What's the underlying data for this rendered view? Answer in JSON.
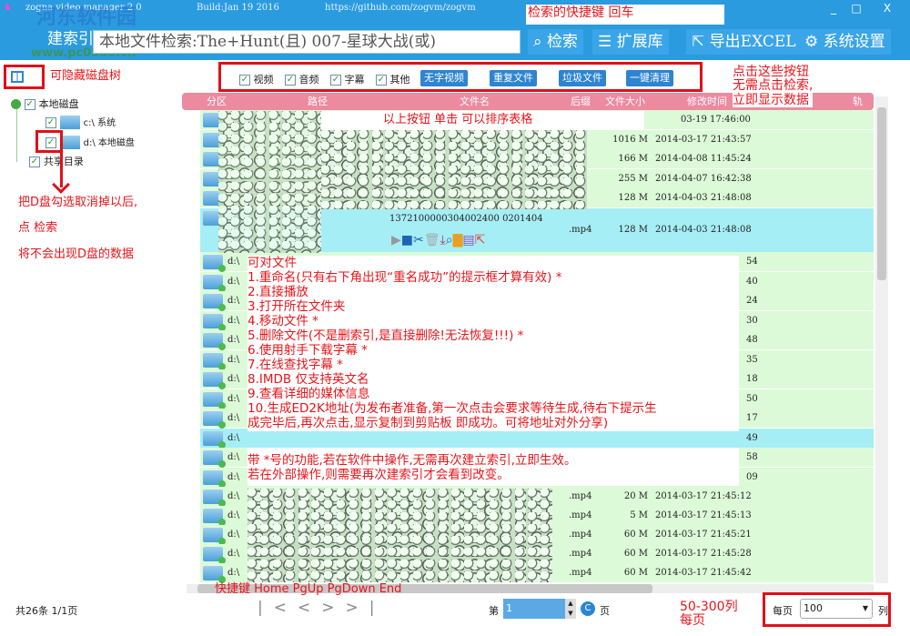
{
  "window": {
    "title": "zogna video manager 2.0",
    "build": "Build:Jan 19 2016",
    "url": "https://github.com/zogvm/zogvm",
    "minimize": "_",
    "maximize": "□",
    "close": "X"
  },
  "watermark": {
    "name": "河东软件园",
    "site": "www.pc0359.cn"
  },
  "toolbar": {
    "index_label": "建索引",
    "search_value": "本地文件检索:The+Hunt(且) 007-星球大战(或)",
    "search": "检索",
    "extend": "扩展库",
    "export": "导出EXCEL",
    "settings": "系统设置"
  },
  "filters": {
    "video": "视频",
    "audio": "音频",
    "subtitle": "字幕",
    "other": "其他",
    "btn_nosub": "无字视频",
    "btn_dup": "重复文件",
    "btn_junk": "垃圾文件",
    "btn_clean": "一键清理"
  },
  "tree": {
    "root": "本地磁盘",
    "c": "c:\\ 系统",
    "d": "d:\\ 本地磁盘",
    "shared": "共享目录"
  },
  "columns": [
    "分区",
    "路径",
    "文件名",
    "后缀",
    "文件大小",
    "修改时间",
    "轨"
  ],
  "rows_top": [
    {
      "size": "",
      "modified": "03-19 17:46:00"
    },
    {
      "size": "1016 M",
      "modified": "2014-03-17 21:43:57"
    },
    {
      "size": "166 M",
      "modified": "2014-04-08 11:45:24"
    },
    {
      "size": "255 M",
      "modified": "2014-04-07 16:42:38"
    },
    {
      "size": "128 M",
      "modified": "2014-04-03 21:48:08"
    }
  ],
  "expanded": {
    "filename": "1372100000304002400  0201404",
    "ext": ".mp4",
    "size": "128 M",
    "modified": "2014-04-03 21:48:08"
  },
  "rows_mid": [
    {
      "drive": "d:\\",
      "tail": "54"
    },
    {
      "drive": "d:\\",
      "tail": "40"
    },
    {
      "drive": "d:\\",
      "tail": "24"
    },
    {
      "drive": "d:\\",
      "tail": "30"
    },
    {
      "drive": "d:\\",
      "tail": "48"
    },
    {
      "drive": "d:\\",
      "tail": "35"
    },
    {
      "drive": "d:\\",
      "tail": "18"
    },
    {
      "drive": "d:\\",
      "tail": "50"
    },
    {
      "drive": "d:\\",
      "tail": "17"
    },
    {
      "drive": "d:\\",
      "tail": "49"
    },
    {
      "drive": "d:\\",
      "tail": "58"
    },
    {
      "drive": "d:\\",
      "tail": "09"
    }
  ],
  "rows_bottom": [
    {
      "drive": "d:\\",
      "ext": ".mp4",
      "size": "20 M",
      "modified": "2014-03-17 21:45:12"
    },
    {
      "drive": "d:\\",
      "ext": ".mp4",
      "size": "5 M",
      "modified": "2014-03-17 21:45:13"
    },
    {
      "drive": "d:\\",
      "ext": ".mp4",
      "size": "60 M",
      "modified": "2014-03-17 21:45:21"
    },
    {
      "drive": "d:\\",
      "ext": ".mp4",
      "size": "60 M",
      "modified": "2014-03-17 21:45:28"
    },
    {
      "drive": "d:\\",
      "ext": ".mp4",
      "size": "60 M",
      "modified": "2014-03-17 21:45:42"
    }
  ],
  "footer": {
    "total": "共26条  1/1页",
    "page_prefix": "第",
    "page_value": "1",
    "page_suffix": "页",
    "per_page_label": "每页",
    "per_page_value": "100",
    "per_page_suffix": "列",
    "nav": [
      "|<",
      "<",
      ">",
      ">|"
    ]
  },
  "annotations": {
    "shortcut": "检索的快捷键 回车",
    "hide_tree": "可隐藏磁盘树",
    "buttons_note": [
      "点击这些按钮",
      "无需点击检索,",
      "立即显示数据"
    ],
    "sort_note": "以上按钮 单击 可以排序表格",
    "tree_note": [
      "把D盘勾选取消掉以后,",
      "点 检索",
      "将不会出现D盘的数据"
    ],
    "features": [
      "可对文件",
      "1.重命名(只有右下角出现“重名成功”的提示框才算有效) *",
      "2.直接播放",
      "3.打开所在文件夹",
      "4.移动文件    *",
      "5.删除文件(不是删索引,是直接删除!无法恢复!!!) *",
      "6.使用射手下载字幕 *",
      "7.在线查找字幕    *",
      "8.IMDB 仅支持英文名",
      "9.查看详细的媒体信息",
      "10.生成ED2K地址(为发布者准备,第一次点击会要求等待生成,待右下提示生",
      "成完毕后,再次点击,显示复制到剪贴板 即成功。可将地址对外分享)"
    ],
    "star_note": [
      "带 *号的功能,若在软件中操作,无需再次建立索引,立即生效。",
      "若在外部操作,则需要再次建索引才会看到改变。"
    ],
    "keys_note": "快捷键 Home PgUp PgDown End",
    "per_page_note": [
      "50-300列",
      "每页"
    ]
  },
  "colors": {
    "titlebar": "#2b9be0",
    "header": "#ec8aa0",
    "row": "#dcfad8",
    "selected": "#a6eef5",
    "annotation": "#e8141a"
  }
}
